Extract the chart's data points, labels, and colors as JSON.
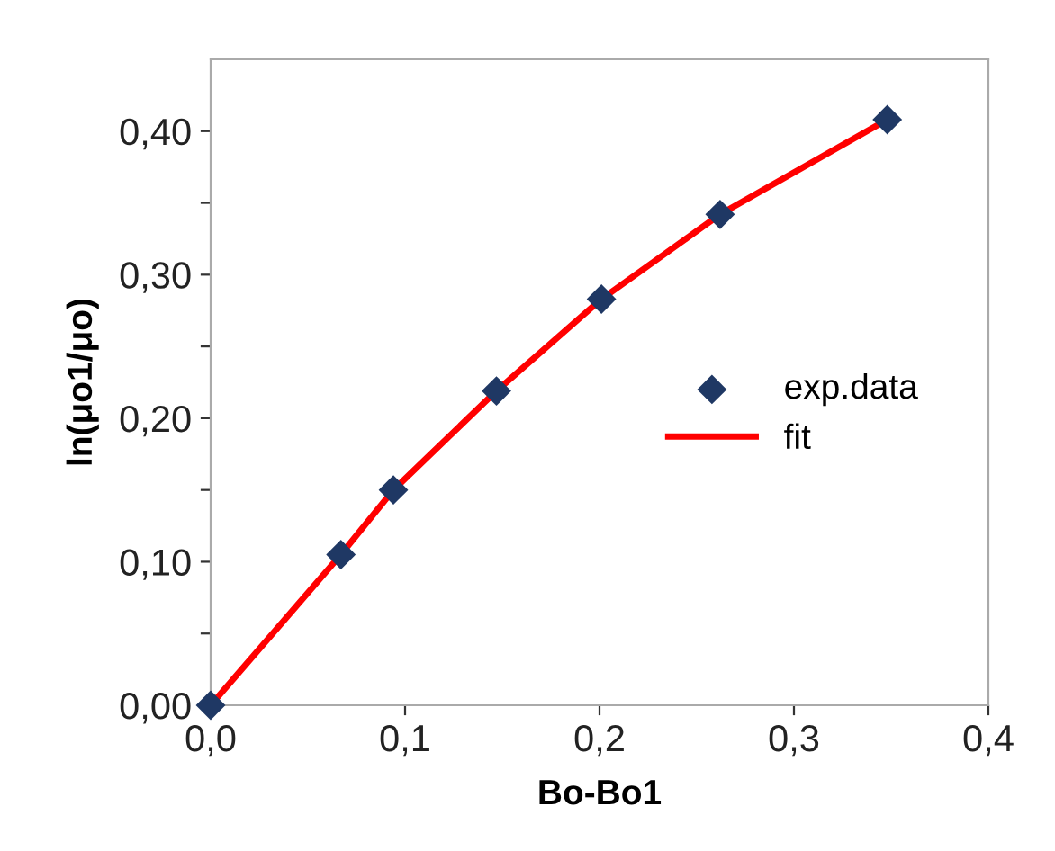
{
  "chart_data": {
    "type": "scatter",
    "xlabel": "Bo-Bo1",
    "ylabel": "ln(μo1/μo)",
    "xlim": [
      0,
      0.4
    ],
    "ylim": [
      0,
      0.45
    ],
    "xticks": [
      {
        "value": 0,
        "label": "0,0"
      },
      {
        "value": 0.1,
        "label": "0,1"
      },
      {
        "value": 0.2,
        "label": "0,2"
      },
      {
        "value": 0.3,
        "label": "0,3"
      },
      {
        "value": 0.4,
        "label": "0,4"
      }
    ],
    "yticks": [
      {
        "value": 0,
        "label": "0,00"
      },
      {
        "value": 0.05,
        "label": null
      },
      {
        "value": 0.1,
        "label": "0,10"
      },
      {
        "value": 0.15,
        "label": null
      },
      {
        "value": 0.2,
        "label": "0,20"
      },
      {
        "value": 0.25,
        "label": null
      },
      {
        "value": 0.3,
        "label": "0,30"
      },
      {
        "value": 0.35,
        "label": null
      },
      {
        "value": 0.4,
        "label": "0,40"
      }
    ],
    "grid": false,
    "legend": "right",
    "series": [
      {
        "name": "exp.data",
        "marker": "diamond",
        "color": "#1f3864",
        "x": [
          0,
          0.067,
          0.094,
          0.147,
          0.201,
          0.262,
          0.348
        ],
        "values": [
          0,
          0.105,
          0.15,
          0.219,
          0.283,
          0.342,
          0.408
        ]
      },
      {
        "name": "fit",
        "type": "line",
        "line_style": "solid",
        "color": "#ff0000",
        "x": [
          0,
          0.067,
          0.094,
          0.147,
          0.201,
          0.262,
          0.348
        ],
        "values": [
          0,
          0.105,
          0.15,
          0.219,
          0.283,
          0.342,
          0.408
        ]
      }
    ]
  }
}
